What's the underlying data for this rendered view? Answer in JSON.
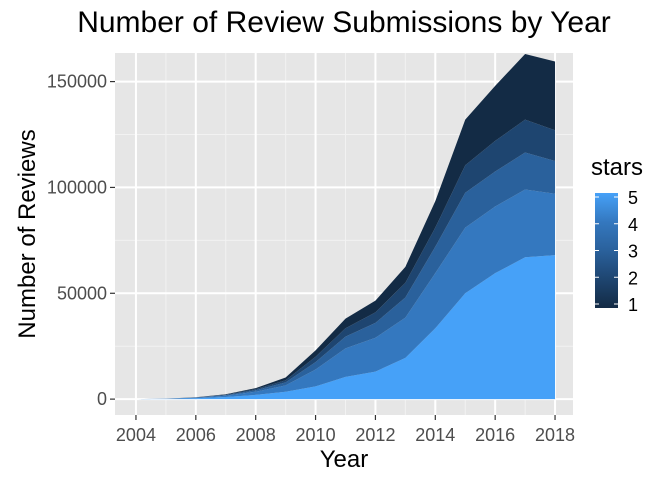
{
  "chart_data": {
    "type": "area",
    "stacked": true,
    "title": "Number of Review Submissions by Year",
    "xlabel": "Year",
    "ylabel": "Number of Reviews",
    "x": [
      2004,
      2005,
      2006,
      2007,
      2008,
      2009,
      2010,
      2011,
      2012,
      2013,
      2014,
      2015,
      2016,
      2017,
      2018
    ],
    "xticks": [
      "2004",
      "2006",
      "2008",
      "2010",
      "2012",
      "2014",
      "2016",
      "2018"
    ],
    "xlim": [
      2003.3,
      2018.6
    ],
    "yticks": [
      "0",
      "50000",
      "100000",
      "150000"
    ],
    "ylim": [
      -7500,
      163500
    ],
    "grid": true,
    "legend": {
      "title": "stars",
      "placement": "right",
      "labels": [
        "5",
        "4",
        "3",
        "2",
        "1"
      ]
    },
    "series": [
      {
        "name": "5",
        "color": "#46a1f8",
        "values": [
          0,
          100,
          400,
          1000,
          2000,
          3500,
          6000,
          10500,
          13000,
          19500,
          33500,
          50000,
          59500,
          67000,
          68000
        ]
      },
      {
        "name": "4",
        "color": "#3478bf",
        "values": [
          0,
          60,
          250,
          600,
          1500,
          3000,
          8000,
          13500,
          16000,
          19000,
          26000,
          31000,
          31500,
          32000,
          29000
        ]
      },
      {
        "name": "3",
        "color": "#2a619c",
        "values": [
          0,
          30,
          120,
          300,
          700,
          1400,
          3500,
          5500,
          7000,
          9500,
          12500,
          16500,
          16500,
          17500,
          15500
        ]
      },
      {
        "name": "2",
        "color": "#1e4570",
        "values": [
          0,
          20,
          80,
          200,
          500,
          1000,
          2500,
          4000,
          5000,
          7000,
          9000,
          13000,
          14500,
          15500,
          14500
        ]
      },
      {
        "name": "1",
        "color": "#132b45",
        "values": [
          0,
          20,
          60,
          200,
          500,
          1300,
          3000,
          4500,
          5500,
          7500,
          12500,
          21500,
          26000,
          31000,
          32500
        ]
      }
    ]
  }
}
